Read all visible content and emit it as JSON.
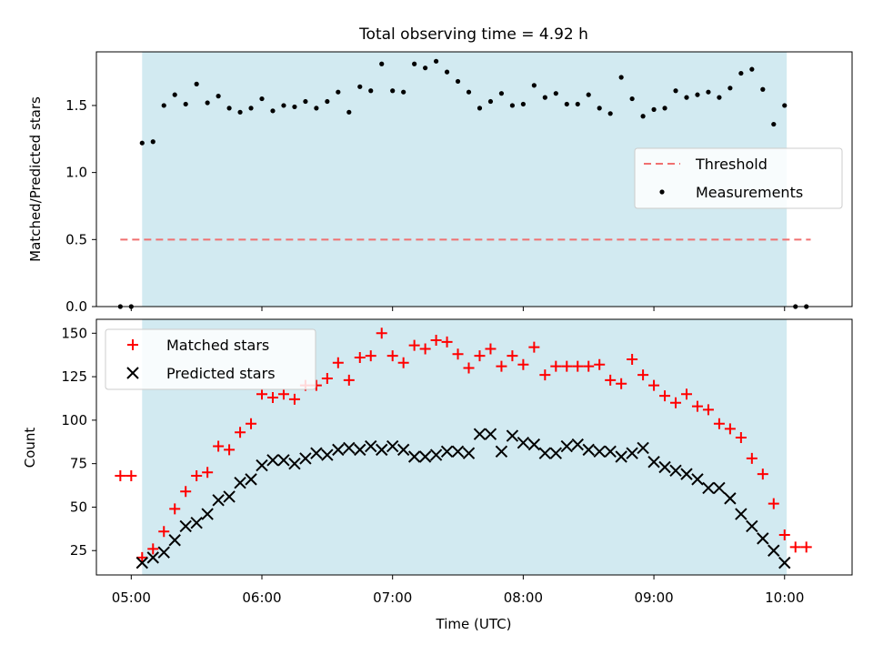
{
  "title": "Total observing time = 4.92 h",
  "colors": {
    "shade": "#add8e6",
    "threshold": "#f07070",
    "measurement": "#000000",
    "matched": "#ff0000",
    "predicted": "#000000"
  },
  "chart_data": [
    {
      "type": "scatter",
      "ylabel": "Matched/Predicted stars",
      "xlim": [
        "04:44",
        "10:31"
      ],
      "ylim": [
        0,
        1.9
      ],
      "yticks": [
        "0.0",
        "0.5",
        "1.0",
        "1.5"
      ],
      "shaded_region": [
        "05:05",
        "10:01"
      ],
      "threshold": {
        "value": 0.5,
        "x_range": [
          "04:55",
          "10:12"
        ]
      },
      "legend": {
        "position": "center-right",
        "entries": [
          "Threshold",
          "Measurements"
        ]
      },
      "series": [
        {
          "name": "Measurements",
          "x": [
            "04:55",
            "05:00",
            "05:05",
            "05:10",
            "05:15",
            "05:20",
            "05:25",
            "05:30",
            "05:35",
            "05:40",
            "05:45",
            "05:50",
            "05:55",
            "06:00",
            "06:05",
            "06:10",
            "06:15",
            "06:20",
            "06:25",
            "06:30",
            "06:35",
            "06:40",
            "06:45",
            "06:50",
            "06:55",
            "07:00",
            "07:05",
            "07:10",
            "07:15",
            "07:20",
            "07:25",
            "07:30",
            "07:35",
            "07:40",
            "07:45",
            "07:50",
            "07:55",
            "08:00",
            "08:05",
            "08:10",
            "08:15",
            "08:20",
            "08:25",
            "08:30",
            "08:35",
            "08:40",
            "08:45",
            "08:50",
            "08:55",
            "09:00",
            "09:05",
            "09:10",
            "09:15",
            "09:20",
            "09:25",
            "09:30",
            "09:35",
            "09:40",
            "09:45",
            "09:50",
            "09:55",
            "10:00",
            "10:05",
            "10:10"
          ],
          "y": [
            0.0,
            0.0,
            1.22,
            1.23,
            1.5,
            1.58,
            1.51,
            1.66,
            1.52,
            1.57,
            1.48,
            1.45,
            1.48,
            1.55,
            1.46,
            1.5,
            1.49,
            1.53,
            1.48,
            1.53,
            1.6,
            1.45,
            1.64,
            1.61,
            1.81,
            1.61,
            1.6,
            1.81,
            1.78,
            1.83,
            1.75,
            1.68,
            1.6,
            1.48,
            1.53,
            1.59,
            1.5,
            1.51,
            1.65,
            1.56,
            1.59,
            1.51,
            1.51,
            1.58,
            1.48,
            1.44,
            1.71,
            1.55,
            1.42,
            1.47,
            1.48,
            1.61,
            1.56,
            1.58,
            1.6,
            1.56,
            1.63,
            1.74,
            1.77,
            1.62,
            1.36,
            1.5,
            0.0,
            0.0
          ]
        }
      ]
    },
    {
      "type": "scatter",
      "xlabel": "Time (UTC)",
      "ylabel": "Count",
      "xlim": [
        "04:44",
        "10:31"
      ],
      "ylim": [
        11,
        158
      ],
      "xticks": [
        "05:00",
        "06:00",
        "07:00",
        "08:00",
        "09:00",
        "10:00"
      ],
      "yticks": [
        "25",
        "50",
        "75",
        "100",
        "125",
        "150"
      ],
      "shaded_region": [
        "05:05",
        "10:01"
      ],
      "legend": {
        "position": "top-left",
        "entries": [
          "Matched stars",
          "Predicted stars"
        ]
      },
      "series": [
        {
          "name": "Matched stars",
          "x": [
            "04:55",
            "05:00",
            "05:05",
            "05:10",
            "05:15",
            "05:20",
            "05:25",
            "05:30",
            "05:35",
            "05:40",
            "05:45",
            "05:50",
            "05:55",
            "06:00",
            "06:05",
            "06:10",
            "06:15",
            "06:20",
            "06:25",
            "06:30",
            "06:35",
            "06:40",
            "06:45",
            "06:50",
            "06:55",
            "07:00",
            "07:05",
            "07:10",
            "07:15",
            "07:20",
            "07:25",
            "07:30",
            "07:35",
            "07:40",
            "07:45",
            "07:50",
            "07:55",
            "08:00",
            "08:05",
            "08:10",
            "08:15",
            "08:20",
            "08:25",
            "08:30",
            "08:35",
            "08:40",
            "08:45",
            "08:50",
            "08:55",
            "09:00",
            "09:05",
            "09:10",
            "09:15",
            "09:20",
            "09:25",
            "09:30",
            "09:35",
            "09:40",
            "09:45",
            "09:50",
            "09:55",
            "10:00",
            "10:05",
            "10:10"
          ],
          "y": [
            68,
            68,
            21,
            26,
            36,
            49,
            59,
            68,
            70,
            85,
            83,
            93,
            98,
            115,
            113,
            115,
            112,
            120,
            120,
            124,
            133,
            123,
            136,
            137,
            150,
            137,
            133,
            143,
            141,
            146,
            145,
            138,
            130,
            137,
            141,
            131,
            137,
            132,
            142,
            126,
            131,
            131,
            131,
            131,
            132,
            123,
            121,
            135,
            126,
            120,
            114,
            110,
            115,
            108,
            106,
            98,
            95,
            90,
            78,
            69,
            52,
            34,
            27,
            27
          ]
        },
        {
          "name": "Predicted stars",
          "x": [
            "05:05",
            "05:10",
            "05:15",
            "05:20",
            "05:25",
            "05:30",
            "05:35",
            "05:40",
            "05:45",
            "05:50",
            "05:55",
            "06:00",
            "06:05",
            "06:10",
            "06:15",
            "06:20",
            "06:25",
            "06:30",
            "06:35",
            "06:40",
            "06:45",
            "06:50",
            "06:55",
            "07:00",
            "07:05",
            "07:10",
            "07:15",
            "07:20",
            "07:25",
            "07:30",
            "07:35",
            "07:40",
            "07:45",
            "07:50",
            "07:55",
            "08:00",
            "08:05",
            "08:10",
            "08:15",
            "08:20",
            "08:25",
            "08:30",
            "08:35",
            "08:40",
            "08:45",
            "08:50",
            "08:55",
            "09:00",
            "09:05",
            "09:10",
            "09:15",
            "09:20",
            "09:25",
            "09:30",
            "09:35",
            "09:40",
            "09:45",
            "09:50",
            "09:55",
            "10:00"
          ],
          "y": [
            18,
            21,
            24,
            31,
            39,
            41,
            46,
            54,
            56,
            64,
            66,
            74,
            77,
            77,
            75,
            78,
            81,
            80,
            83,
            84,
            83,
            85,
            83,
            85,
            83,
            79,
            79,
            80,
            82,
            82,
            81,
            92,
            92,
            82,
            91,
            87,
            86,
            81,
            81,
            85,
            86,
            83,
            82,
            82,
            79,
            81,
            84,
            76,
            73,
            71,
            69,
            66,
            61,
            61,
            55,
            46,
            39,
            32,
            25,
            18
          ]
        }
      ]
    }
  ]
}
